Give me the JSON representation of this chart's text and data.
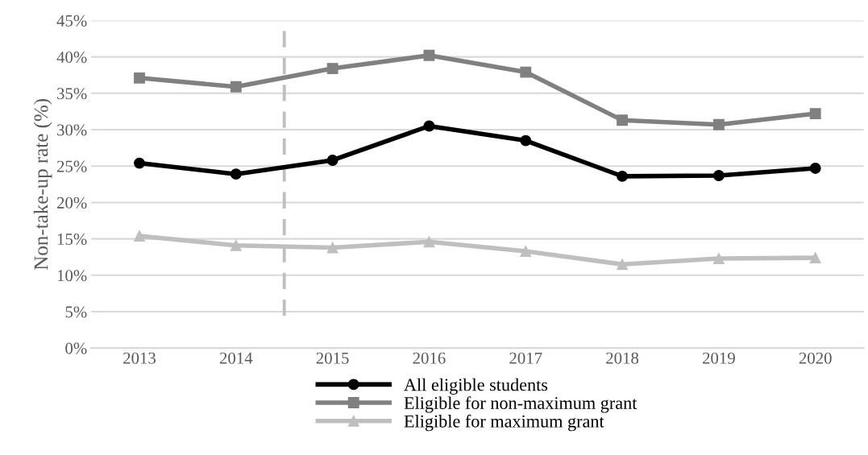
{
  "chart_data": {
    "type": "line",
    "ylabel": "Non-take-up rate (%)",
    "categories": [
      "2013",
      "2014",
      "2015",
      "2016",
      "2017",
      "2018",
      "2019",
      "2020"
    ],
    "series": [
      {
        "name": "All eligible students",
        "color": "#000000",
        "marker": "circle",
        "values": [
          25.4,
          23.9,
          25.8,
          30.5,
          28.5,
          23.6,
          23.7,
          24.7
        ]
      },
      {
        "name": "Eligible for non-maximum grant",
        "color": "#808080",
        "marker": "square",
        "values": [
          37.1,
          35.9,
          38.4,
          40.2,
          37.9,
          31.3,
          30.7,
          32.2
        ]
      },
      {
        "name": "Eligible for maximum grant",
        "color": "#bfbfbf",
        "marker": "triangle",
        "values": [
          15.4,
          14.1,
          13.8,
          14.6,
          13.3,
          11.5,
          12.3,
          12.4
        ]
      }
    ],
    "ylim": [
      0,
      45
    ],
    "yticks": [
      {
        "value": 0,
        "label": "0%"
      },
      {
        "value": 5,
        "label": "5%"
      },
      {
        "value": 10,
        "label": "10%"
      },
      {
        "value": 15,
        "label": "15%"
      },
      {
        "value": 20,
        "label": "20%"
      },
      {
        "value": 25,
        "label": "25%"
      },
      {
        "value": 30,
        "label": "30%"
      },
      {
        "value": 35,
        "label": "35%"
      },
      {
        "value": 40,
        "label": "40%"
      },
      {
        "value": 45,
        "label": "45%"
      }
    ],
    "grid": "y",
    "legend": "bottom",
    "line_style": "solid"
  }
}
